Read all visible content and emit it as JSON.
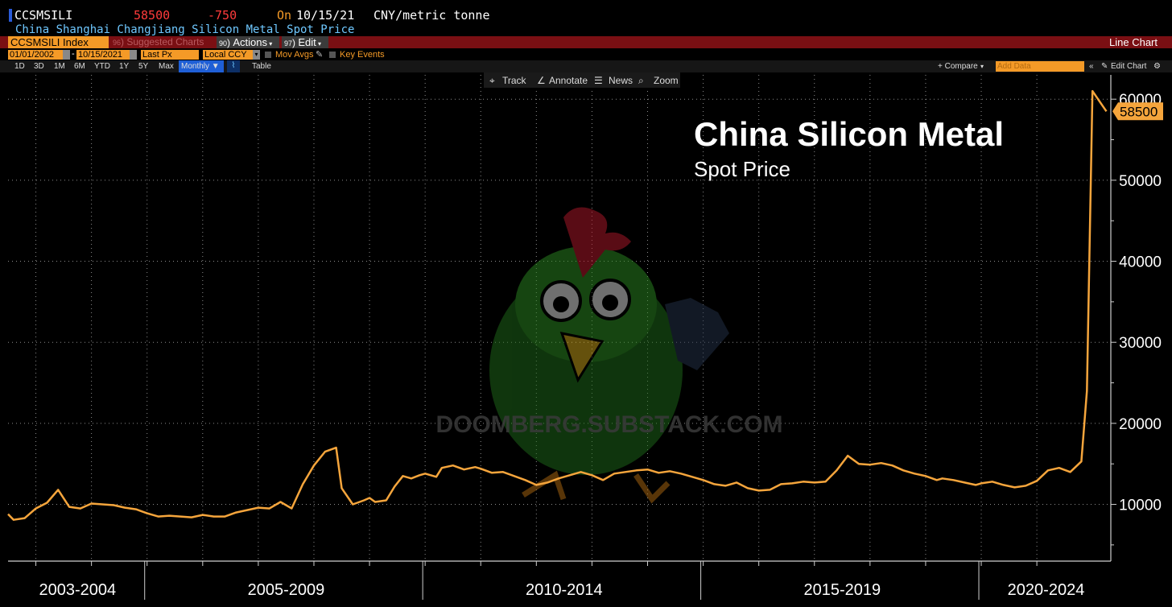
{
  "header": {
    "ticker": "CCSMSILI",
    "last_price": "58500",
    "change": "-750",
    "on_label": "On",
    "date": "10/15/21",
    "unit": "CNY/metric tonne",
    "security_name": "China Shanghai Changjiang Silicon Metal Spot Price"
  },
  "menu_bar": {
    "index_field": "CCSMSILI Index",
    "suggested_num": "96",
    "suggested": "Suggested Charts",
    "actions_num": "90",
    "actions": "Actions",
    "edit_num": "97",
    "edit": "Edit",
    "chart_type": "Line Chart"
  },
  "settings_bar": {
    "start_date": "01/01/2002",
    "end_date": "10/15/2021",
    "field": "Last Px",
    "currency": "Local CCY",
    "mov_avgs": "Mov Avgs",
    "key_events": "Key Events"
  },
  "period_bar": {
    "periods": [
      "1D",
      "3D",
      "1M",
      "6M",
      "YTD",
      "1Y",
      "5Y",
      "Max"
    ],
    "frequency": "Monthly",
    "table": "Table",
    "compare": "+ Compare",
    "add_data_placeholder": "Add Data",
    "edit_chart": "Edit Chart"
  },
  "chart_toolbar": {
    "track": "Track",
    "annotate": "Annotate",
    "news": "News",
    "zoom": "Zoom"
  },
  "colors": {
    "line": "#f5a53c",
    "price_up_down": "#ff3b3b",
    "subtitle": "#6fc8ff",
    "menu_bar": "#7a0f13",
    "field_orange": "#f49a27",
    "grid": "#ffffff"
  },
  "watermark": {
    "text": "DOOMBERG.SUBSTACK.COM"
  },
  "chart_data": {
    "type": "line",
    "title": "China Silicon Metal",
    "subtitle": "Spot Price",
    "ylim": [
      3000,
      63000
    ],
    "yticks": [
      10000,
      20000,
      30000,
      40000,
      50000,
      60000
    ],
    "ytick_labels": [
      "10000",
      "20000",
      "30000",
      "40000",
      "50000",
      "60000"
    ],
    "xlim": [
      2002.5,
      2022.33
    ],
    "period_labels": [
      "2003-2004",
      "2005-2009",
      "2010-2014",
      "2015-2019",
      "2020-2024"
    ],
    "last_value_label": "58500",
    "grid": true,
    "series": [
      {
        "x": [
          2002.5,
          2002.6,
          2002.8,
          2003.0,
          2003.2,
          2003.4,
          2003.6,
          2003.8,
          2004.0,
          2004.2,
          2004.4,
          2004.6,
          2004.8,
          2005.0,
          2005.2,
          2005.4,
          2005.6,
          2005.8,
          2006.0,
          2006.2,
          2006.4,
          2006.6,
          2006.8,
          2007.0,
          2007.2,
          2007.4,
          2007.6,
          2007.8,
          2008.0,
          2008.2,
          2008.4,
          2008.5,
          2008.7,
          2008.9,
          2009.0,
          2009.1,
          2009.3,
          2009.45,
          2009.6,
          2009.75,
          2009.9,
          2010.0,
          2010.2,
          2010.3,
          2010.5,
          2010.7,
          2010.9,
          2011.0,
          2011.2,
          2011.4,
          2011.6,
          2011.8,
          2012.0,
          2012.2,
          2012.4,
          2012.6,
          2012.8,
          2013.0,
          2013.2,
          2013.4,
          2013.6,
          2013.8,
          2014.0,
          2014.2,
          2014.4,
          2014.6,
          2014.8,
          2015.0,
          2015.2,
          2015.4,
          2015.6,
          2015.8,
          2016.0,
          2016.2,
          2016.4,
          2016.6,
          2016.8,
          2017.0,
          2017.2,
          2017.4,
          2017.6,
          2017.8,
          2018.0,
          2018.2,
          2018.4,
          2018.6,
          2018.8,
          2019.0,
          2019.2,
          2019.3,
          2019.5,
          2019.7,
          2019.9,
          2020.0,
          2020.2,
          2020.4,
          2020.6,
          2020.8,
          2021.0,
          2021.2,
          2021.4,
          2021.6,
          2021.8,
          2021.9,
          2022.0,
          2022.1,
          2022.25
        ],
        "y": [
          8800,
          8100,
          8300,
          9500,
          10200,
          11800,
          9700,
          9500,
          10100,
          10000,
          9900,
          9600,
          9400,
          8900,
          8500,
          8600,
          8500,
          8400,
          8700,
          8500,
          8500,
          9000,
          9300,
          9600,
          9500,
          10300,
          9500,
          12500,
          14800,
          16500,
          17000,
          12000,
          10000,
          10500,
          10800,
          10300,
          10500,
          12200,
          13500,
          13200,
          13600,
          13800,
          13400,
          14500,
          14800,
          14300,
          14600,
          14400,
          13900,
          14000,
          13500,
          13000,
          12400,
          12700,
          13200,
          13600,
          14000,
          13600,
          13000,
          13800,
          14000,
          14200,
          14300,
          13900,
          14100,
          13800,
          13400,
          13000,
          12500,
          12300,
          12700,
          12000,
          11700,
          11800,
          12500,
          12600,
          12800,
          12700,
          12800,
          14200,
          16000,
          15000,
          14900,
          15100,
          14800,
          14200,
          13800,
          13500,
          13000,
          13200,
          13000,
          12700,
          12400,
          12600,
          12800,
          12400,
          12100,
          12300,
          12900,
          14200,
          14500,
          14000,
          15300,
          24000,
          61000,
          60000,
          58500
        ]
      }
    ]
  }
}
